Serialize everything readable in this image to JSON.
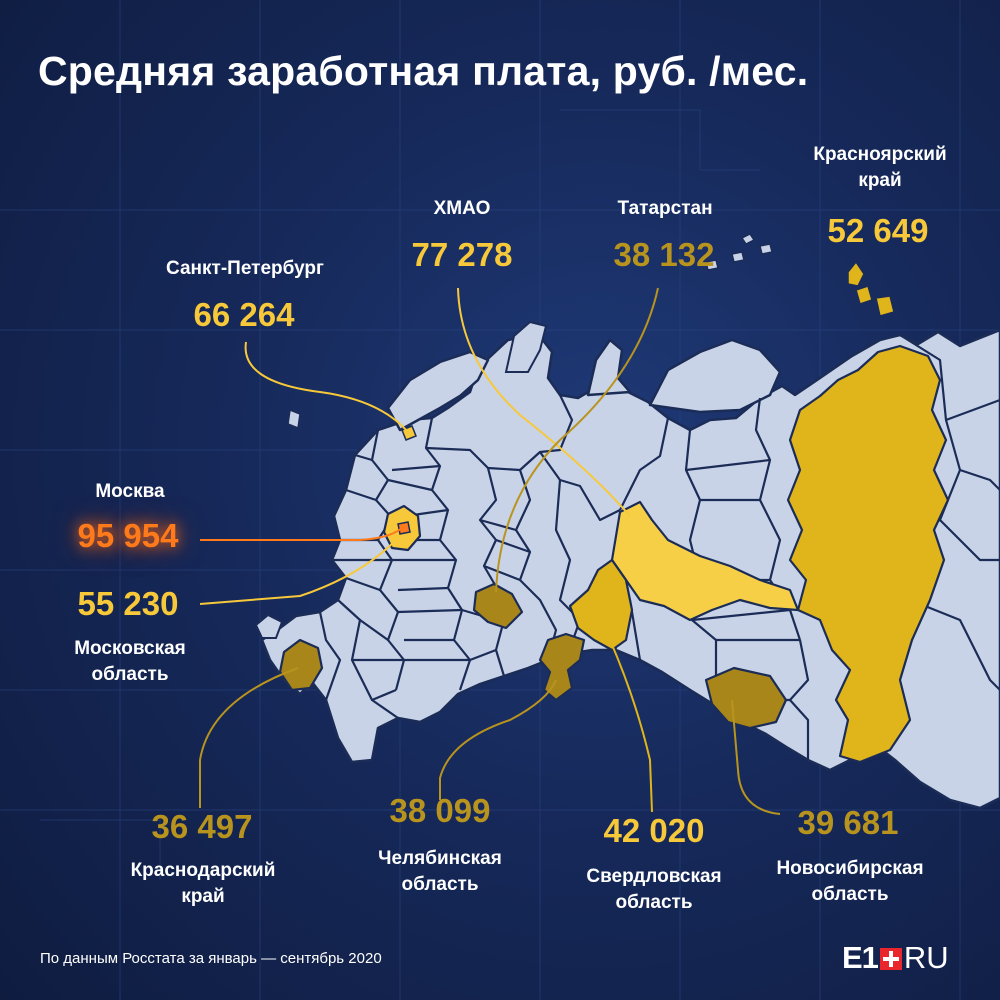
{
  "title": "Средняя заработная плата, руб. /мес.",
  "regions": {
    "khmao": {
      "name": "ХМАО",
      "value": "77 278"
    },
    "tatarstan": {
      "name": "Татарстан",
      "value": "38 132"
    },
    "krasnoyarsk": {
      "name": "Красноярский\nкрай",
      "value": "52 649"
    },
    "spb": {
      "name": "Санкт-Петербург",
      "value": "66 264"
    },
    "moscow": {
      "name": "Москва",
      "value": "95 954"
    },
    "moscow_oblast": {
      "name": "Московская\nобласть",
      "value": "55 230"
    },
    "krasnodar": {
      "name": "Краснодарский\nкрай",
      "value": "36 497"
    },
    "chelyabinsk": {
      "name": "Челябинская\nобласть",
      "value": "38 099"
    },
    "sverdlovsk": {
      "name": "Свердловская\nобласть",
      "value": "42 020"
    },
    "novosibirsk": {
      "name": "Новосибирская\nобласть",
      "value": "39 681"
    }
  },
  "footnote": "По данным Росстата за январь — сентябрь 2020",
  "brand": {
    "left": "E1",
    "right": "RU"
  },
  "colors": {
    "background": "#16295a",
    "map_fill": "#c9d3e8",
    "map_border": "#1b2c57",
    "highlight_bright": "#f7c93a",
    "highlight_gold": "#e0b51c",
    "highlight_dim": "#a8861a",
    "moscow_accent": "#ff7a1a",
    "brand_red": "#e8262b"
  }
}
